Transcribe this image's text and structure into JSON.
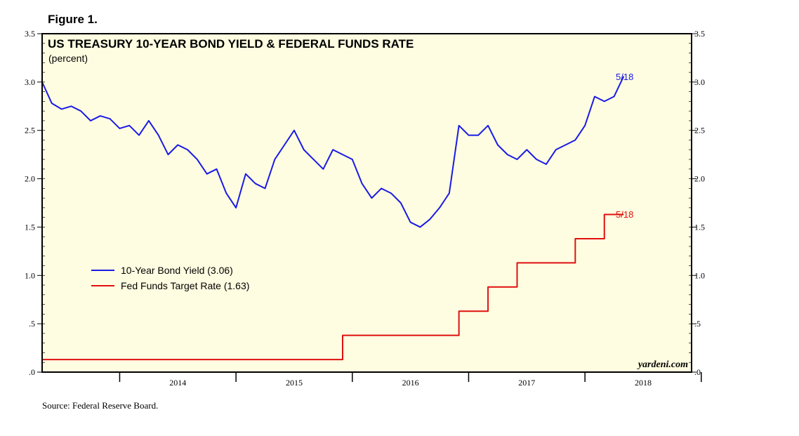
{
  "figure_label": "Figure 1.",
  "source": "Source: Federal Reserve Board.",
  "watermark": "yardeni.com",
  "colors": {
    "plot_bg": "#fffde1",
    "bond": "#1a1ae6",
    "fed": "#e01010",
    "frame": "#000000"
  },
  "chart_data": {
    "type": "line",
    "title": "US TREASURY 10-YEAR BOND YIELD & FEDERAL FUNDS RATE",
    "subtitle": "(percent)",
    "ylim": [
      0,
      3.5
    ],
    "y_ticks": [
      {
        "value": 0,
        "label": ".0"
      },
      {
        "value": 0.5,
        "label": ".5"
      },
      {
        "value": 1.0,
        "label": "1.0"
      },
      {
        "value": 1.5,
        "label": "1.5"
      },
      {
        "value": 2.0,
        "label": "2.0"
      },
      {
        "value": 2.5,
        "label": "2.5"
      },
      {
        "value": 3.0,
        "label": "3.0"
      },
      {
        "value": 3.5,
        "label": "3.5"
      }
    ],
    "xlim": [
      "2013-05",
      "2018-12"
    ],
    "x_year_boundaries": [
      2014,
      2015,
      2016,
      2017,
      2018
    ],
    "x_year_labels": [
      "2014",
      "2015",
      "2016",
      "2017",
      "2018"
    ],
    "legend_position": "lower-left",
    "series": [
      {
        "name": "10-Year Bond Yield (3.06)",
        "color": "#1a1ae6",
        "end_label": "5/18",
        "x": [
          "2013-05",
          "2013-06",
          "2013-07",
          "2013-08",
          "2013-09",
          "2013-10",
          "2013-11",
          "2013-12",
          "2014-01",
          "2014-02",
          "2014-03",
          "2014-04",
          "2014-05",
          "2014-06",
          "2014-07",
          "2014-08",
          "2014-09",
          "2014-10",
          "2014-11",
          "2014-12",
          "2015-01",
          "2015-02",
          "2015-03",
          "2015-04",
          "2015-05",
          "2015-06",
          "2015-07",
          "2015-08",
          "2015-09",
          "2015-10",
          "2015-11",
          "2015-12",
          "2016-01",
          "2016-02",
          "2016-03",
          "2016-04",
          "2016-05",
          "2016-06",
          "2016-07",
          "2016-08",
          "2016-09",
          "2016-10",
          "2016-11",
          "2016-12",
          "2017-01",
          "2017-02",
          "2017-03",
          "2017-04",
          "2017-05",
          "2017-06",
          "2017-07",
          "2017-08",
          "2017-09",
          "2017-10",
          "2017-11",
          "2017-12",
          "2018-01",
          "2018-02",
          "2018-03",
          "2018-04",
          "2018-05"
        ],
        "values": [
          3.0,
          2.78,
          2.72,
          2.75,
          2.7,
          2.6,
          2.65,
          2.62,
          2.52,
          2.55,
          2.45,
          2.6,
          2.45,
          2.25,
          2.35,
          2.3,
          2.2,
          2.05,
          2.1,
          1.85,
          1.7,
          2.05,
          1.95,
          1.9,
          2.2,
          2.35,
          2.5,
          2.3,
          2.2,
          2.1,
          2.3,
          2.25,
          2.2,
          1.95,
          1.8,
          1.9,
          1.85,
          1.75,
          1.55,
          1.5,
          1.58,
          1.7,
          1.85,
          2.55,
          2.45,
          2.45,
          2.55,
          2.35,
          2.25,
          2.2,
          2.3,
          2.2,
          2.15,
          2.3,
          2.35,
          2.4,
          2.55,
          2.85,
          2.8,
          2.85,
          3.06
        ]
      },
      {
        "name": "Fed Funds Target Rate (1.63)",
        "color": "#e01010",
        "end_label": "5/18",
        "step": true,
        "x": [
          "2013-05",
          "2015-12",
          "2016-12",
          "2017-03",
          "2017-06",
          "2017-12",
          "2018-03",
          "2018-05"
        ],
        "values": [
          0.13,
          0.38,
          0.63,
          0.88,
          1.13,
          1.38,
          1.63,
          1.63
        ]
      }
    ]
  }
}
